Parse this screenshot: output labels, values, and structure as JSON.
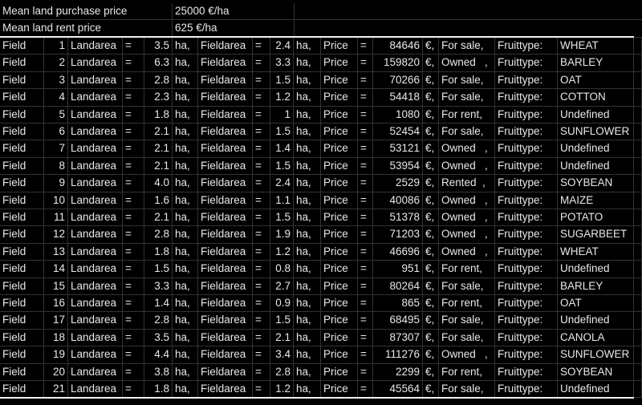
{
  "header": {
    "purchase_label": "Mean land purchase price",
    "purchase_value": "25000 €/ha",
    "rent_label": "Mean land rent price",
    "rent_value": "625 €/ha"
  },
  "labels": {
    "field": "Field",
    "landarea": "Landarea",
    "eq": "=",
    "ha": "ha,",
    "fieldarea": "Fieldarea",
    "price": "Price",
    "euro": "€,",
    "fruittype": "Fruittype:"
  },
  "fields": [
    {
      "id": "1",
      "land": "3.5",
      "farea": "2.4",
      "price": "84646",
      "status": "For sale,",
      "fruit": "WHEAT"
    },
    {
      "id": "2",
      "land": "6.3",
      "farea": "3.3",
      "price": "159820",
      "status": "Owned   ,",
      "fruit": "BARLEY"
    },
    {
      "id": "3",
      "land": "2.8",
      "farea": "1.5",
      "price": "70266",
      "status": "For sale,",
      "fruit": "OAT"
    },
    {
      "id": "4",
      "land": "2.3",
      "farea": "1.2",
      "price": "54418",
      "status": "For sale,",
      "fruit": "COTTON"
    },
    {
      "id": "5",
      "land": "1.8",
      "farea": "1",
      "price": "1080",
      "status": "For rent,",
      "fruit": "Undefined"
    },
    {
      "id": "6",
      "land": "2.1",
      "farea": "1.5",
      "price": "52454",
      "status": "For sale,",
      "fruit": "SUNFLOWER"
    },
    {
      "id": "7",
      "land": "2.1",
      "farea": "1.4",
      "price": "53121",
      "status": "Owned   ,",
      "fruit": "Undefined"
    },
    {
      "id": "8",
      "land": "2.1",
      "farea": "1.5",
      "price": "53954",
      "status": "Owned   ,",
      "fruit": "Undefined"
    },
    {
      "id": "9",
      "land": "4.0",
      "farea": "2.4",
      "price": "2529",
      "status": "Rented  ,",
      "fruit": "SOYBEAN"
    },
    {
      "id": "10",
      "land": "1.6",
      "farea": "1.1",
      "price": "40086",
      "status": "Owned   ,",
      "fruit": "MAIZE"
    },
    {
      "id": "11",
      "land": "2.1",
      "farea": "1.5",
      "price": "51378",
      "status": "Owned   ,",
      "fruit": "POTATO"
    },
    {
      "id": "12",
      "land": "2.8",
      "farea": "1.9",
      "price": "71203",
      "status": "Owned   ,",
      "fruit": "SUGARBEET"
    },
    {
      "id": "13",
      "land": "1.8",
      "farea": "1.2",
      "price": "46696",
      "status": "Owned   ,",
      "fruit": "WHEAT"
    },
    {
      "id": "14",
      "land": "1.5",
      "farea": "0.8",
      "price": "951",
      "status": "For rent,",
      "fruit": "Undefined"
    },
    {
      "id": "15",
      "land": "3.3",
      "farea": "2.7",
      "price": "80264",
      "status": "For sale,",
      "fruit": "BARLEY"
    },
    {
      "id": "16",
      "land": "1.4",
      "farea": "0.9",
      "price": "865",
      "status": "For rent,",
      "fruit": "OAT"
    },
    {
      "id": "17",
      "land": "2.8",
      "farea": "1.5",
      "price": "68495",
      "status": "For sale,",
      "fruit": "Undefined"
    },
    {
      "id": "18",
      "land": "3.5",
      "farea": "2.1",
      "price": "87307",
      "status": "For sale,",
      "fruit": "CANOLA"
    },
    {
      "id": "19",
      "land": "4.4",
      "farea": "3.4",
      "price": "111276",
      "status": "Owned   ,",
      "fruit": "SUNFLOWER"
    },
    {
      "id": "20",
      "land": "3.8",
      "farea": "2.8",
      "price": "2299",
      "status": "For rent,",
      "fruit": "SOYBEAN"
    },
    {
      "id": "21",
      "land": "1.8",
      "farea": "1.2",
      "price": "45564",
      "status": "For sale,",
      "fruit": "Undefined"
    }
  ]
}
